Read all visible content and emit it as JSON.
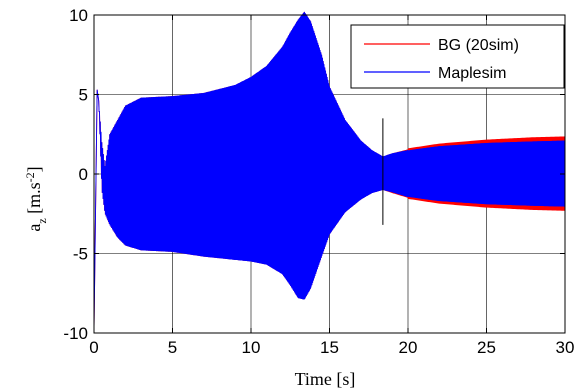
{
  "chart_data": {
    "type": "line",
    "title": "",
    "xlabel": "Time [s]",
    "ylabel": "a",
    "ylabel_subscript": "z",
    "ylabel_unit": " [m.s",
    "ylabel_exponent": "-2",
    "ylabel_close": "]",
    "xlim": [
      0,
      30
    ],
    "ylim": [
      -10,
      10
    ],
    "x_ticks": [
      0,
      5,
      10,
      15,
      20,
      25,
      30
    ],
    "y_ticks": [
      -10,
      -5,
      0,
      5,
      10
    ],
    "x_tick_labels": [
      "0",
      "5",
      "10",
      "15",
      "20",
      "25",
      "30"
    ],
    "y_tick_labels": [
      "-10",
      "-5",
      "0",
      "5",
      "10"
    ],
    "grid": true,
    "legend_position": "top-right",
    "series": [
      {
        "name": "BG (20sim)",
        "color": "#ff0000",
        "envelope": {
          "x": [
            0,
            0.2,
            0.3,
            0.5,
            0.7,
            1,
            1.5,
            2,
            3,
            5,
            7,
            9,
            10,
            11,
            12,
            12.5,
            13,
            13.4,
            13.8,
            14.5,
            15,
            16,
            17,
            17.7,
            18.4,
            19,
            20,
            22,
            25,
            28,
            30
          ],
          "upper": [
            -9.8,
            5.3,
            4.6,
            2,
            0.5,
            2.5,
            3.4,
            4.3,
            4.8,
            4.9,
            5.1,
            5.6,
            6.1,
            6.8,
            8.0,
            8.9,
            9.7,
            10.2,
            9.6,
            7.5,
            5.5,
            3.4,
            2.1,
            1.5,
            1.1,
            1.3,
            1.55,
            1.85,
            2.1,
            2.25,
            2.3
          ],
          "lower": [
            -9.8,
            5.3,
            4.6,
            -1,
            -2.5,
            -3.2,
            -4,
            -4.5,
            -4.8,
            -4.9,
            -5.2,
            -5.4,
            -5.5,
            -5.7,
            -6.3,
            -7.0,
            -7.8,
            -7.9,
            -7.2,
            -5.2,
            -3.8,
            -2.4,
            -1.6,
            -1.2,
            -1.0,
            -1.2,
            -1.5,
            -1.8,
            -2.05,
            -2.2,
            -2.25
          ]
        }
      },
      {
        "name": "Maplesim",
        "color": "#0000ff",
        "envelope": {
          "x": [
            0,
            0.2,
            0.3,
            0.5,
            0.7,
            1,
            1.5,
            2,
            3,
            5,
            7,
            9,
            10,
            11,
            12,
            12.5,
            13,
            13.4,
            13.8,
            14.5,
            15,
            16,
            17,
            17.7,
            18.4,
            19,
            20,
            22,
            25,
            28,
            30
          ],
          "upper": [
            -9.8,
            5.3,
            4.6,
            2,
            0.5,
            2.5,
            3.4,
            4.3,
            4.8,
            4.9,
            5.1,
            5.6,
            6.1,
            6.8,
            8.0,
            8.9,
            9.7,
            10.2,
            9.6,
            7.5,
            5.5,
            3.4,
            2.1,
            1.5,
            1.1,
            1.3,
            1.5,
            1.75,
            1.95,
            2.05,
            2.1
          ],
          "lower": [
            -9.8,
            5.3,
            4.6,
            -1,
            -2.5,
            -3.2,
            -4,
            -4.5,
            -4.8,
            -4.9,
            -5.2,
            -5.4,
            -5.5,
            -5.7,
            -6.3,
            -7.0,
            -7.8,
            -7.9,
            -7.2,
            -5.2,
            -3.8,
            -2.4,
            -1.6,
            -1.2,
            -1.0,
            -1.15,
            -1.45,
            -1.7,
            -1.9,
            -2.0,
            -2.05
          ]
        }
      }
    ],
    "annotations": [
      {
        "type": "vertical-marker",
        "x": 18.4,
        "y_from": -3.2,
        "y_to": 3.5,
        "color": "#000000"
      }
    ]
  }
}
